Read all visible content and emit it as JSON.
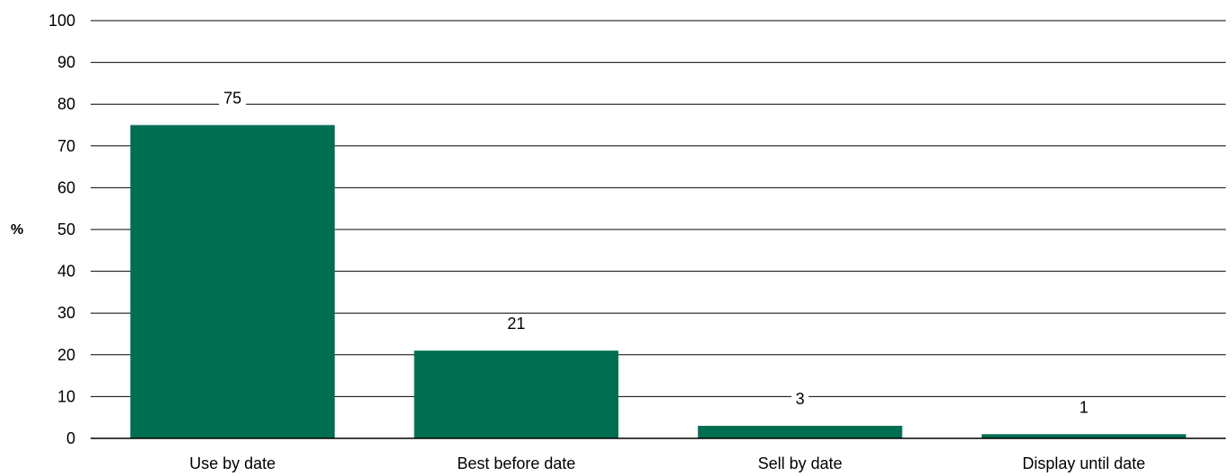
{
  "chart_data": {
    "type": "bar",
    "categories": [
      "Use by date",
      "Best before date",
      "Sell by date",
      "Display until date"
    ],
    "values": [
      75,
      21,
      3,
      1
    ],
    "data_labels": [
      "75",
      "21",
      "3",
      "1"
    ],
    "title": "",
    "xlabel": "",
    "ylabel": "%",
    "ylim": [
      0,
      100
    ],
    "yticks": [
      0,
      10,
      20,
      30,
      40,
      50,
      60,
      70,
      80,
      90,
      100
    ],
    "grid": true,
    "legend": "none",
    "bar_color": "#006f51"
  }
}
